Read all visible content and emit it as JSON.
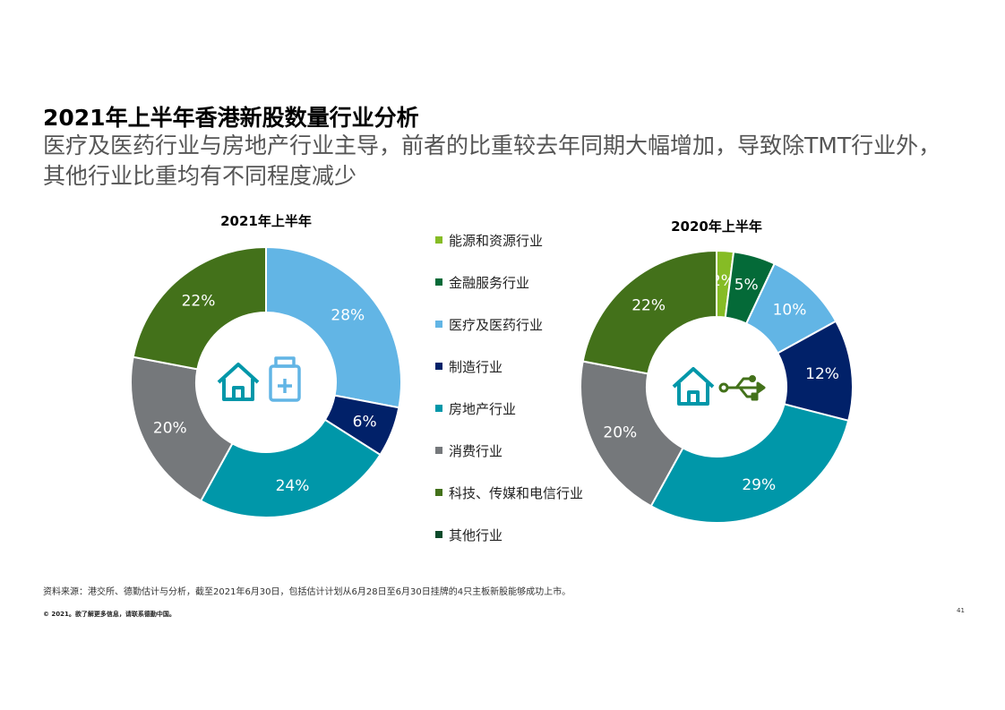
{
  "title": "2021年上半年香港新股数量行业分析",
  "subtitle": "医疗及医药行业与房地产行业主导，前者的比重较去年同期大幅增加，导致除TMT行业外，其他行业比重均有不同程度减少",
  "legend": [
    {
      "label": "能源和资源行业",
      "color": "#86bc25"
    },
    {
      "label": "金融服务行业",
      "color": "#046a38"
    },
    {
      "label": "医疗及医药行业",
      "color": "#62b5e5"
    },
    {
      "label": "制造行业",
      "color": "#012169"
    },
    {
      "label": "房地产行业",
      "color": "#0097a9"
    },
    {
      "label": "消费行业",
      "color": "#75787b"
    },
    {
      "label": "科技、传媒和电信行业",
      "color": "#43711a"
    },
    {
      "label": "其他行业",
      "color": "#0b4a2a"
    }
  ],
  "chart_data": [
    {
      "type": "pie",
      "title": "2021年上半年",
      "center_icons": [
        "house-icon",
        "medicine-bottle-icon"
      ],
      "slices": [
        {
          "category": "医疗及医药行业",
          "value": 28,
          "label": "28%",
          "color": "#62b5e5"
        },
        {
          "category": "制造行业",
          "value": 6,
          "label": "6%",
          "color": "#012169"
        },
        {
          "category": "房地产行业",
          "value": 24,
          "label": "24%",
          "color": "#0097a9"
        },
        {
          "category": "消费行业",
          "value": 20,
          "label": "20%",
          "color": "#75787b"
        },
        {
          "category": "科技、传媒和电信行业",
          "value": 22,
          "label": "22%",
          "color": "#43711a"
        }
      ]
    },
    {
      "type": "pie",
      "title": "2020年上半年",
      "center_icons": [
        "house-icon",
        "usb-icon"
      ],
      "slices": [
        {
          "category": "能源和资源行业",
          "value": 2,
          "label": "2%",
          "color": "#86bc25"
        },
        {
          "category": "金融服务行业",
          "value": 5,
          "label": "5%",
          "color": "#046a38"
        },
        {
          "category": "医疗及医药行业",
          "value": 10,
          "label": "10%",
          "color": "#62b5e5"
        },
        {
          "category": "制造行业",
          "value": 12,
          "label": "12%",
          "color": "#012169"
        },
        {
          "category": "房地产行业",
          "value": 29,
          "label": "29%",
          "color": "#0097a9"
        },
        {
          "category": "消费行业",
          "value": 20,
          "label": "20%",
          "color": "#75787b"
        },
        {
          "category": "科技、传媒和电信行业",
          "value": 22,
          "label": "22%",
          "color": "#43711a"
        }
      ]
    }
  ],
  "footer": {
    "source": "资料来源：港交所、德勤估计与分析，截至2021年6月30日，包括估计计划从6月28日至6月30日挂牌的4只主板新股能够成功上市。",
    "copyright": "© 2021。欲了解更多信息，请联系德勤中国。",
    "page_number": "41"
  }
}
